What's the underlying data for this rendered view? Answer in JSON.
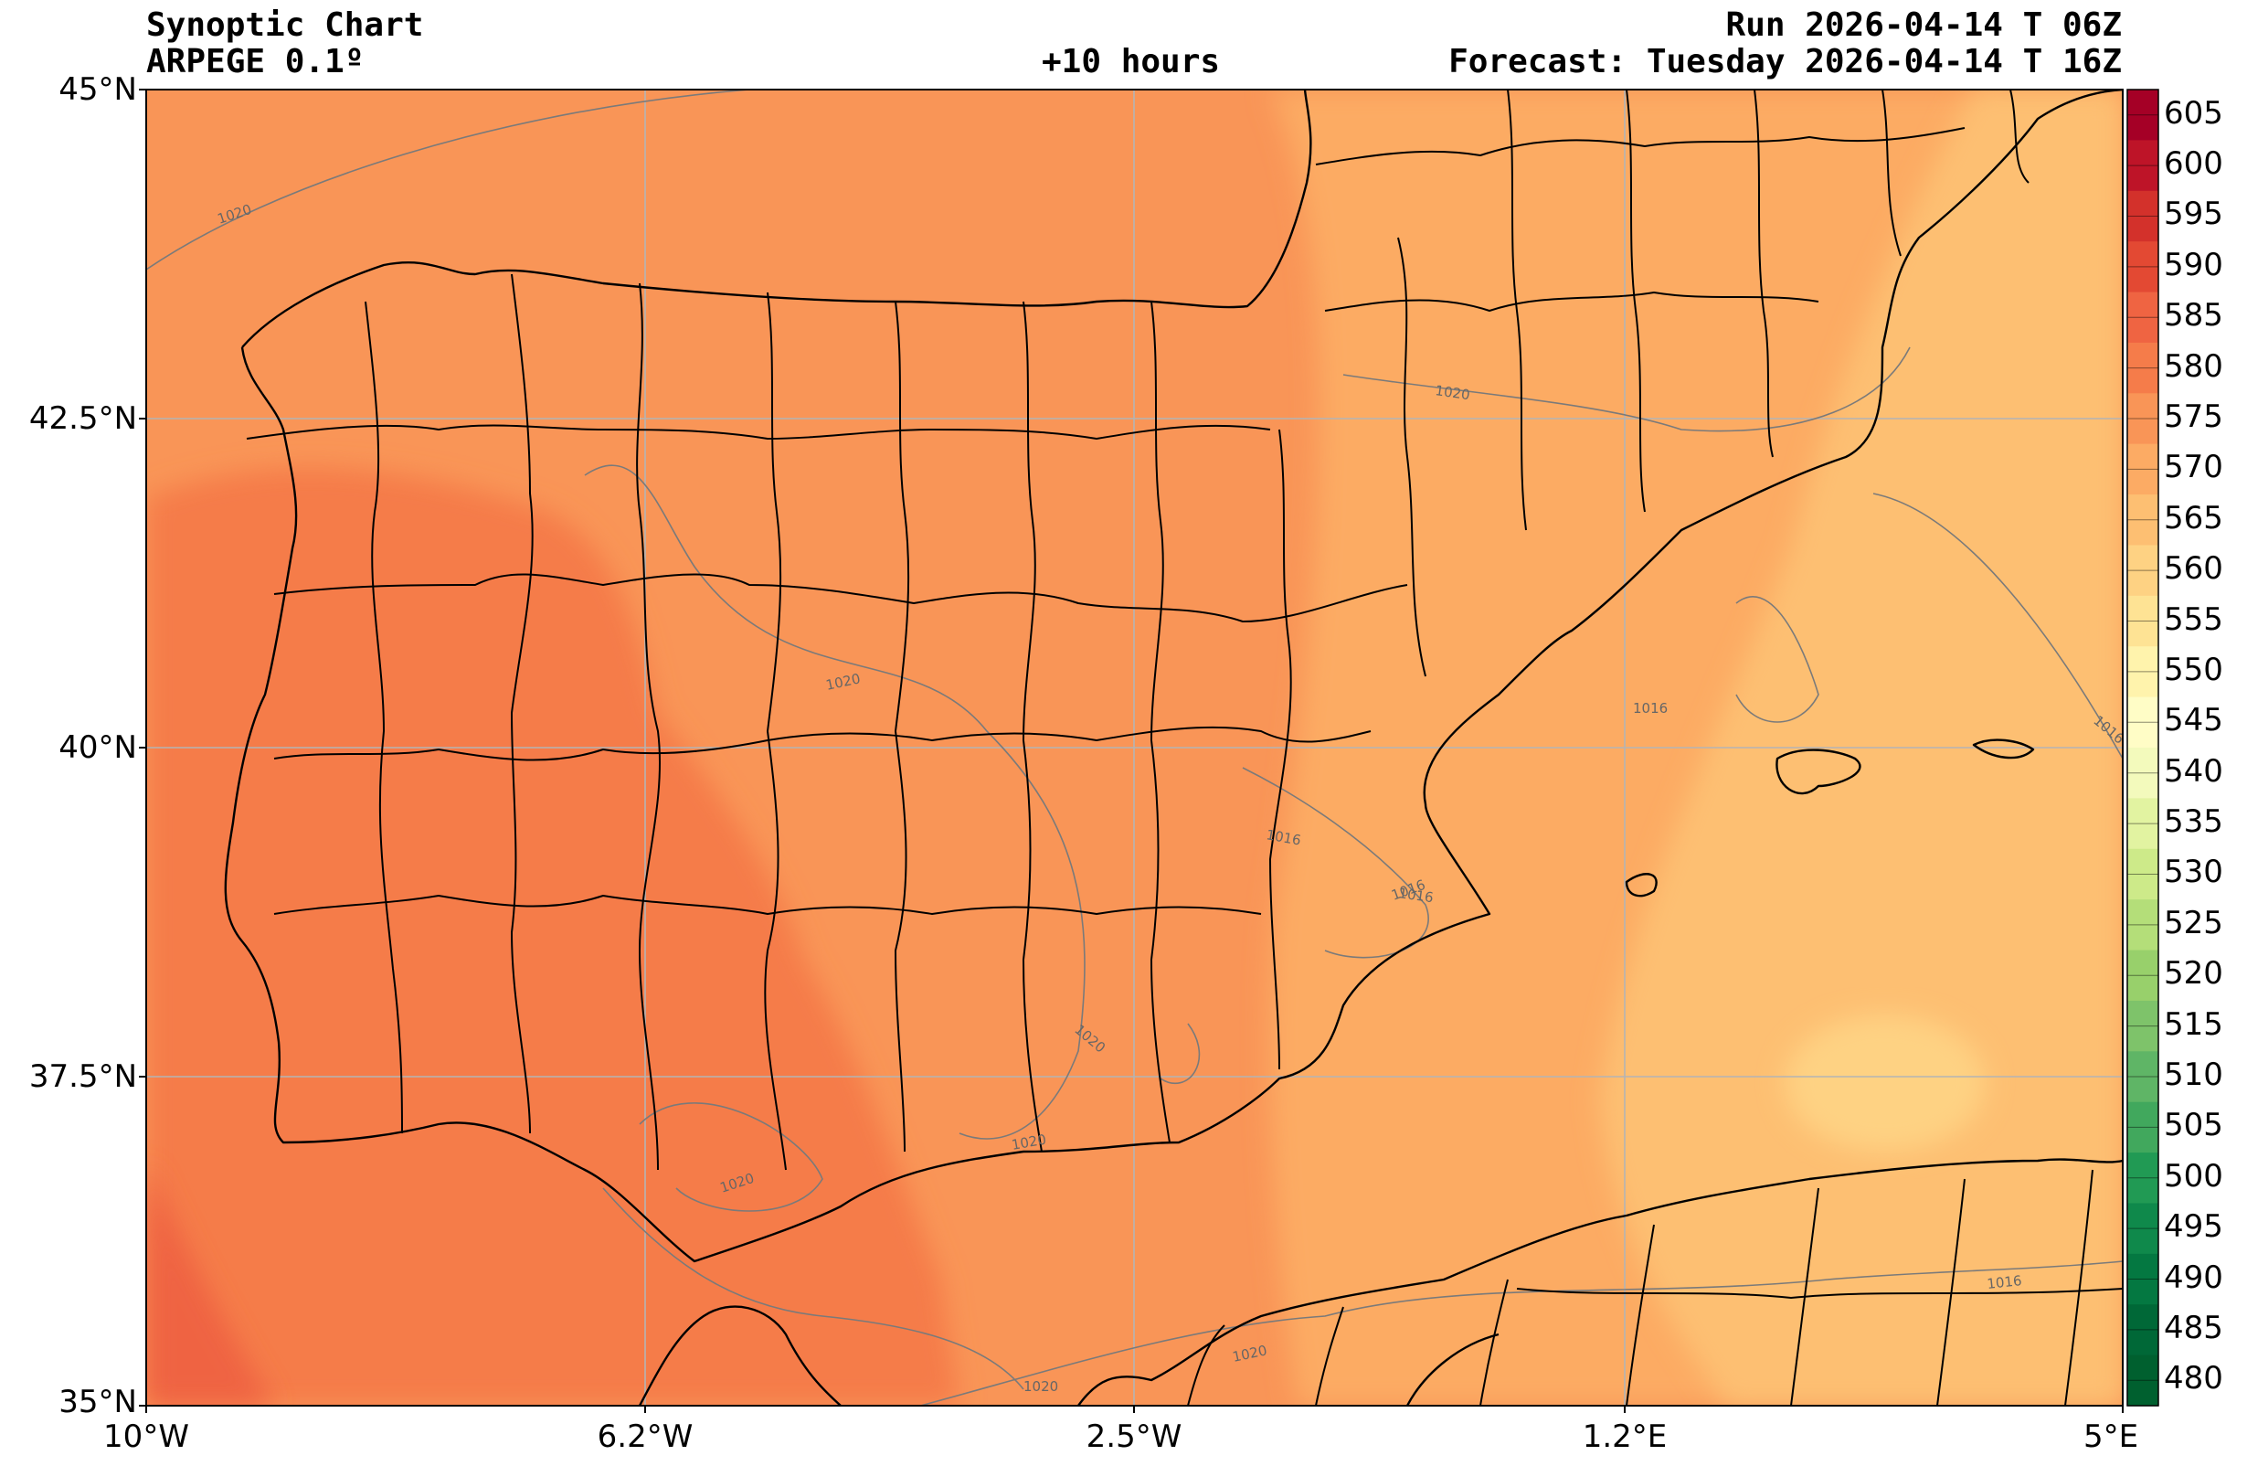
{
  "header": {
    "title": "Synoptic Chart",
    "model": "ARPEGE 0.1º",
    "lead": "+10 hours",
    "run": "Run 2026-04-14 T 06Z",
    "forecast": "Forecast: Tuesday 2026-04-14 T 16Z"
  },
  "axes": {
    "lat_labels": [
      "45°N",
      "42.5°N",
      "40°N",
      "37.5°N",
      "35°N"
    ],
    "lon_labels": [
      "10°W",
      "6.2°W",
      "2.5°W",
      "1.2°E",
      "5°E"
    ]
  },
  "isobars": {
    "labels": [
      "1020",
      "1020",
      "1020",
      "1020",
      "1020",
      "1020",
      "1020",
      "1020",
      "1016",
      "1016",
      "1016",
      "1016",
      "1016",
      "1016"
    ]
  },
  "colorbar": {
    "levels": [
      605,
      600,
      595,
      590,
      585,
      580,
      575,
      570,
      565,
      560,
      555,
      550,
      545,
      540,
      535,
      530,
      525,
      520,
      515,
      510,
      505,
      500,
      495,
      490,
      485,
      480
    ],
    "colors": [
      "#a50026",
      "#be1428",
      "#d3312b",
      "#e34933",
      "#ef6442",
      "#f57c4a",
      "#f99557",
      "#fcab64",
      "#fdbf72",
      "#fed283",
      "#fee394",
      "#fff3ac",
      "#fffdc6",
      "#f3fabc",
      "#e2f3a1",
      "#cdea89",
      "#b4de79",
      "#98d06b",
      "#7ec36a",
      "#5fb566",
      "#41a85d",
      "#219a54",
      "#0f894b",
      "#047841",
      "#006837",
      "#00602f"
    ]
  },
  "colors": {
    "coast": "#000000",
    "isobar": "#7a7a7a",
    "grid": "#b4b4b4"
  }
}
